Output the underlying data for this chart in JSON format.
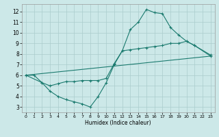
{
  "xlabel": "Humidex (Indice chaleur)",
  "bg_color": "#cce8e8",
  "line_color": "#1a7a6e",
  "grid_color": "#aacccc",
  "xlim": [
    -0.5,
    23.5
  ],
  "ylim": [
    2.5,
    12.7
  ],
  "xticks": [
    0,
    1,
    2,
    3,
    4,
    5,
    6,
    7,
    8,
    9,
    10,
    11,
    12,
    13,
    14,
    15,
    16,
    17,
    18,
    19,
    20,
    21,
    22,
    23
  ],
  "yticks": [
    3,
    4,
    5,
    6,
    7,
    8,
    9,
    10,
    11,
    12
  ],
  "line1_x": [
    0,
    1,
    2,
    3,
    4,
    5,
    6,
    7,
    8,
    9,
    10,
    11,
    12,
    13,
    14,
    15,
    16,
    17,
    18,
    19,
    20,
    21,
    23
  ],
  "line1_y": [
    6.0,
    6.0,
    5.3,
    4.5,
    4.0,
    3.7,
    3.5,
    3.3,
    3.0,
    4.0,
    5.3,
    7.0,
    8.3,
    10.3,
    11.0,
    12.2,
    11.9,
    11.8,
    10.5,
    9.8,
    9.2,
    8.8,
    7.8
  ],
  "line2_x": [
    0,
    2,
    3,
    4,
    5,
    6,
    7,
    8,
    9,
    10,
    11,
    12,
    13,
    14,
    15,
    16,
    17,
    18,
    19,
    20,
    21,
    23
  ],
  "line2_y": [
    6.0,
    5.3,
    5.0,
    5.2,
    5.4,
    5.4,
    5.5,
    5.5,
    5.5,
    5.7,
    7.1,
    8.3,
    8.4,
    8.5,
    8.6,
    8.7,
    8.8,
    9.0,
    9.0,
    9.2,
    8.8,
    7.9
  ],
  "line3_x": [
    0,
    23
  ],
  "line3_y": [
    6.0,
    7.8
  ]
}
